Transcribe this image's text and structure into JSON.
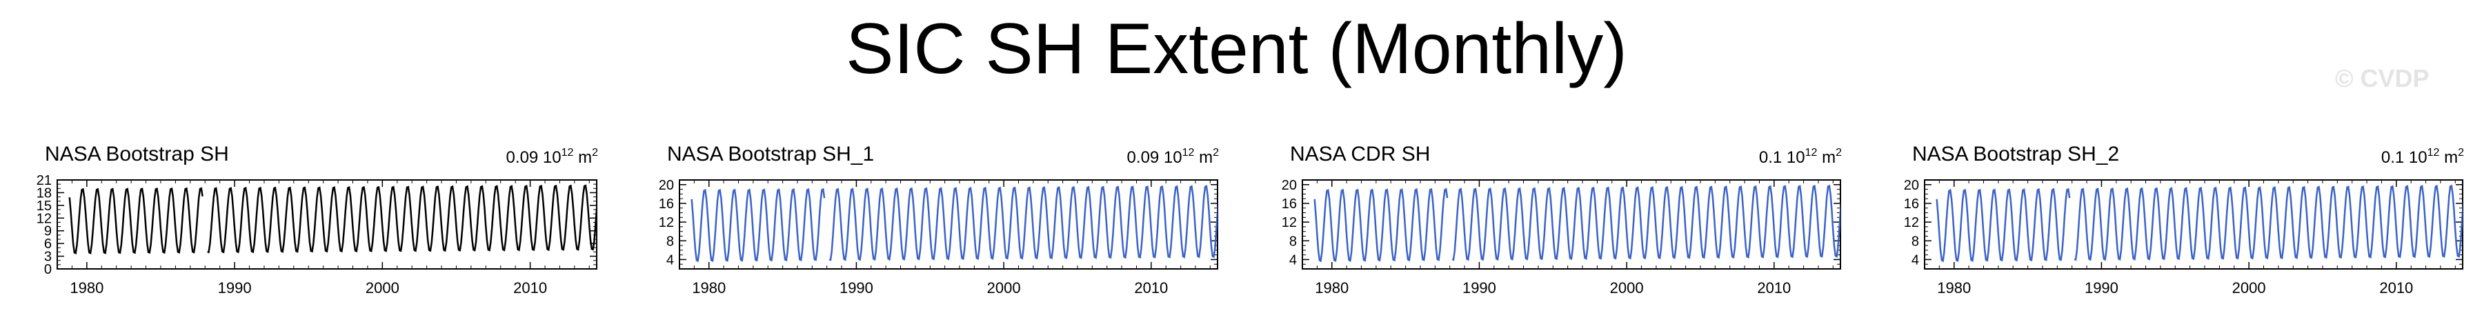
{
  "page": {
    "title": "SIC SH Extent (Monthly)",
    "watermark": "© CVDP"
  },
  "chart_data": [
    {
      "type": "line",
      "title": "NASA Bootstrap SH",
      "annotation": "0.09 10",
      "annotation_sup": "12",
      "annotation_unit": " m",
      "annotation_unit_sup": "2",
      "series_color": "#000000",
      "xlim": [
        1978.0,
        2014.5
      ],
      "xticks": [
        1980,
        1990,
        2000,
        2010
      ],
      "ylim": [
        0,
        21
      ],
      "yticks": [
        0,
        3,
        6,
        9,
        12,
        15,
        18,
        21
      ],
      "gap": [
        1987.9,
        1988.1
      ],
      "series": [
        {
          "x_start": 1978.83,
          "x_end": 2014.92,
          "min": 3.5,
          "max": 19.0,
          "trend_per_year": 0.025,
          "max_month_phase": 0.71
        }
      ]
    },
    {
      "type": "line",
      "title": "NASA Bootstrap SH_1",
      "annotation": "0.09 10",
      "annotation_sup": "12",
      "annotation_unit": " m",
      "annotation_unit_sup": "2",
      "series_color": "#3a62c9",
      "xlim": [
        1978.0,
        2014.5
      ],
      "xticks": [
        1980,
        1990,
        2000,
        2010
      ],
      "ylim": [
        2,
        21
      ],
      "yticks": [
        4,
        8,
        12,
        16,
        20
      ],
      "gap": [
        1987.9,
        1988.1
      ],
      "series": [
        {
          "x_start": 1978.83,
          "x_end": 2014.92,
          "min": 3.5,
          "max": 19.0,
          "trend_per_year": 0.025,
          "max_month_phase": 0.71
        }
      ]
    },
    {
      "type": "line",
      "title": "NASA CDR SH",
      "annotation": "0.1 10",
      "annotation_sup": "12",
      "annotation_unit": " m",
      "annotation_unit_sup": "2",
      "series_color": "#3a62c9",
      "xlim": [
        1978.0,
        2014.5
      ],
      "xticks": [
        1980,
        1990,
        2000,
        2010
      ],
      "ylim": [
        2,
        21
      ],
      "yticks": [
        4,
        8,
        12,
        16,
        20
      ],
      "gap": [
        1987.9,
        1988.1
      ],
      "series": [
        {
          "x_start": 1978.83,
          "x_end": 2014.92,
          "min": 3.5,
          "max": 19.0,
          "trend_per_year": 0.027,
          "max_month_phase": 0.71
        }
      ]
    },
    {
      "type": "line",
      "title": "NASA Bootstrap SH_2",
      "annotation": "0.1 10",
      "annotation_sup": "12",
      "annotation_unit": " m",
      "annotation_unit_sup": "2",
      "series_color": "#3a62c9",
      "xlim": [
        1978.0,
        2014.5
      ],
      "xticks": [
        1980,
        1990,
        2000,
        2010
      ],
      "ylim": [
        2,
        21
      ],
      "yticks": [
        4,
        8,
        12,
        16,
        20
      ],
      "gap": [
        1987.9,
        1988.1
      ],
      "series": [
        {
          "x_start": 1978.83,
          "x_end": 2014.92,
          "min": 3.5,
          "max": 19.0,
          "trend_per_year": 0.027,
          "max_month_phase": 0.71
        }
      ]
    }
  ]
}
